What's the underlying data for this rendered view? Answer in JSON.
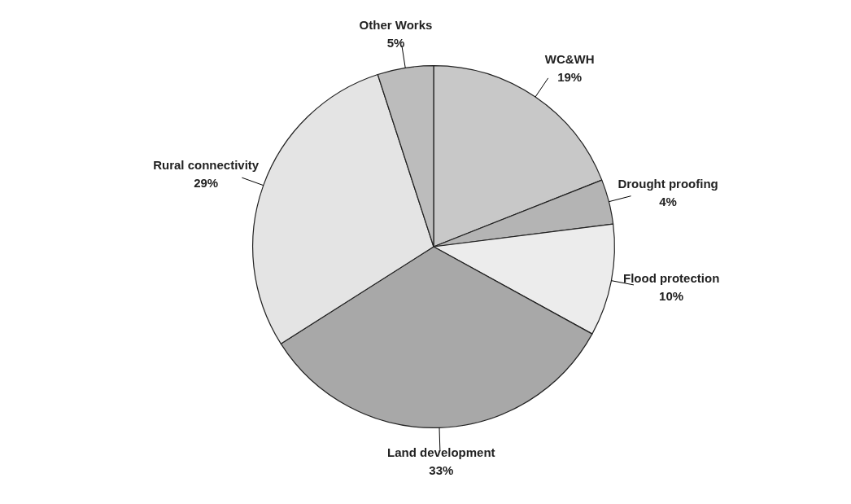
{
  "chart_data": {
    "type": "pie",
    "categories": [
      "WC&WH",
      "Drought proofing",
      "Flood protection",
      "Land development",
      "Rural connectivity",
      "Other Works"
    ],
    "values": [
      19,
      4,
      10,
      33,
      29,
      5
    ],
    "value_labels": [
      "19%",
      "4%",
      "10%",
      "33%",
      "29%",
      "5%"
    ],
    "colors": [
      "#c8c8c8",
      "#b4b4b4",
      "#ececec",
      "#a8a8a8",
      "#e4e4e4",
      "#bcbcbc"
    ],
    "legend": false
  }
}
